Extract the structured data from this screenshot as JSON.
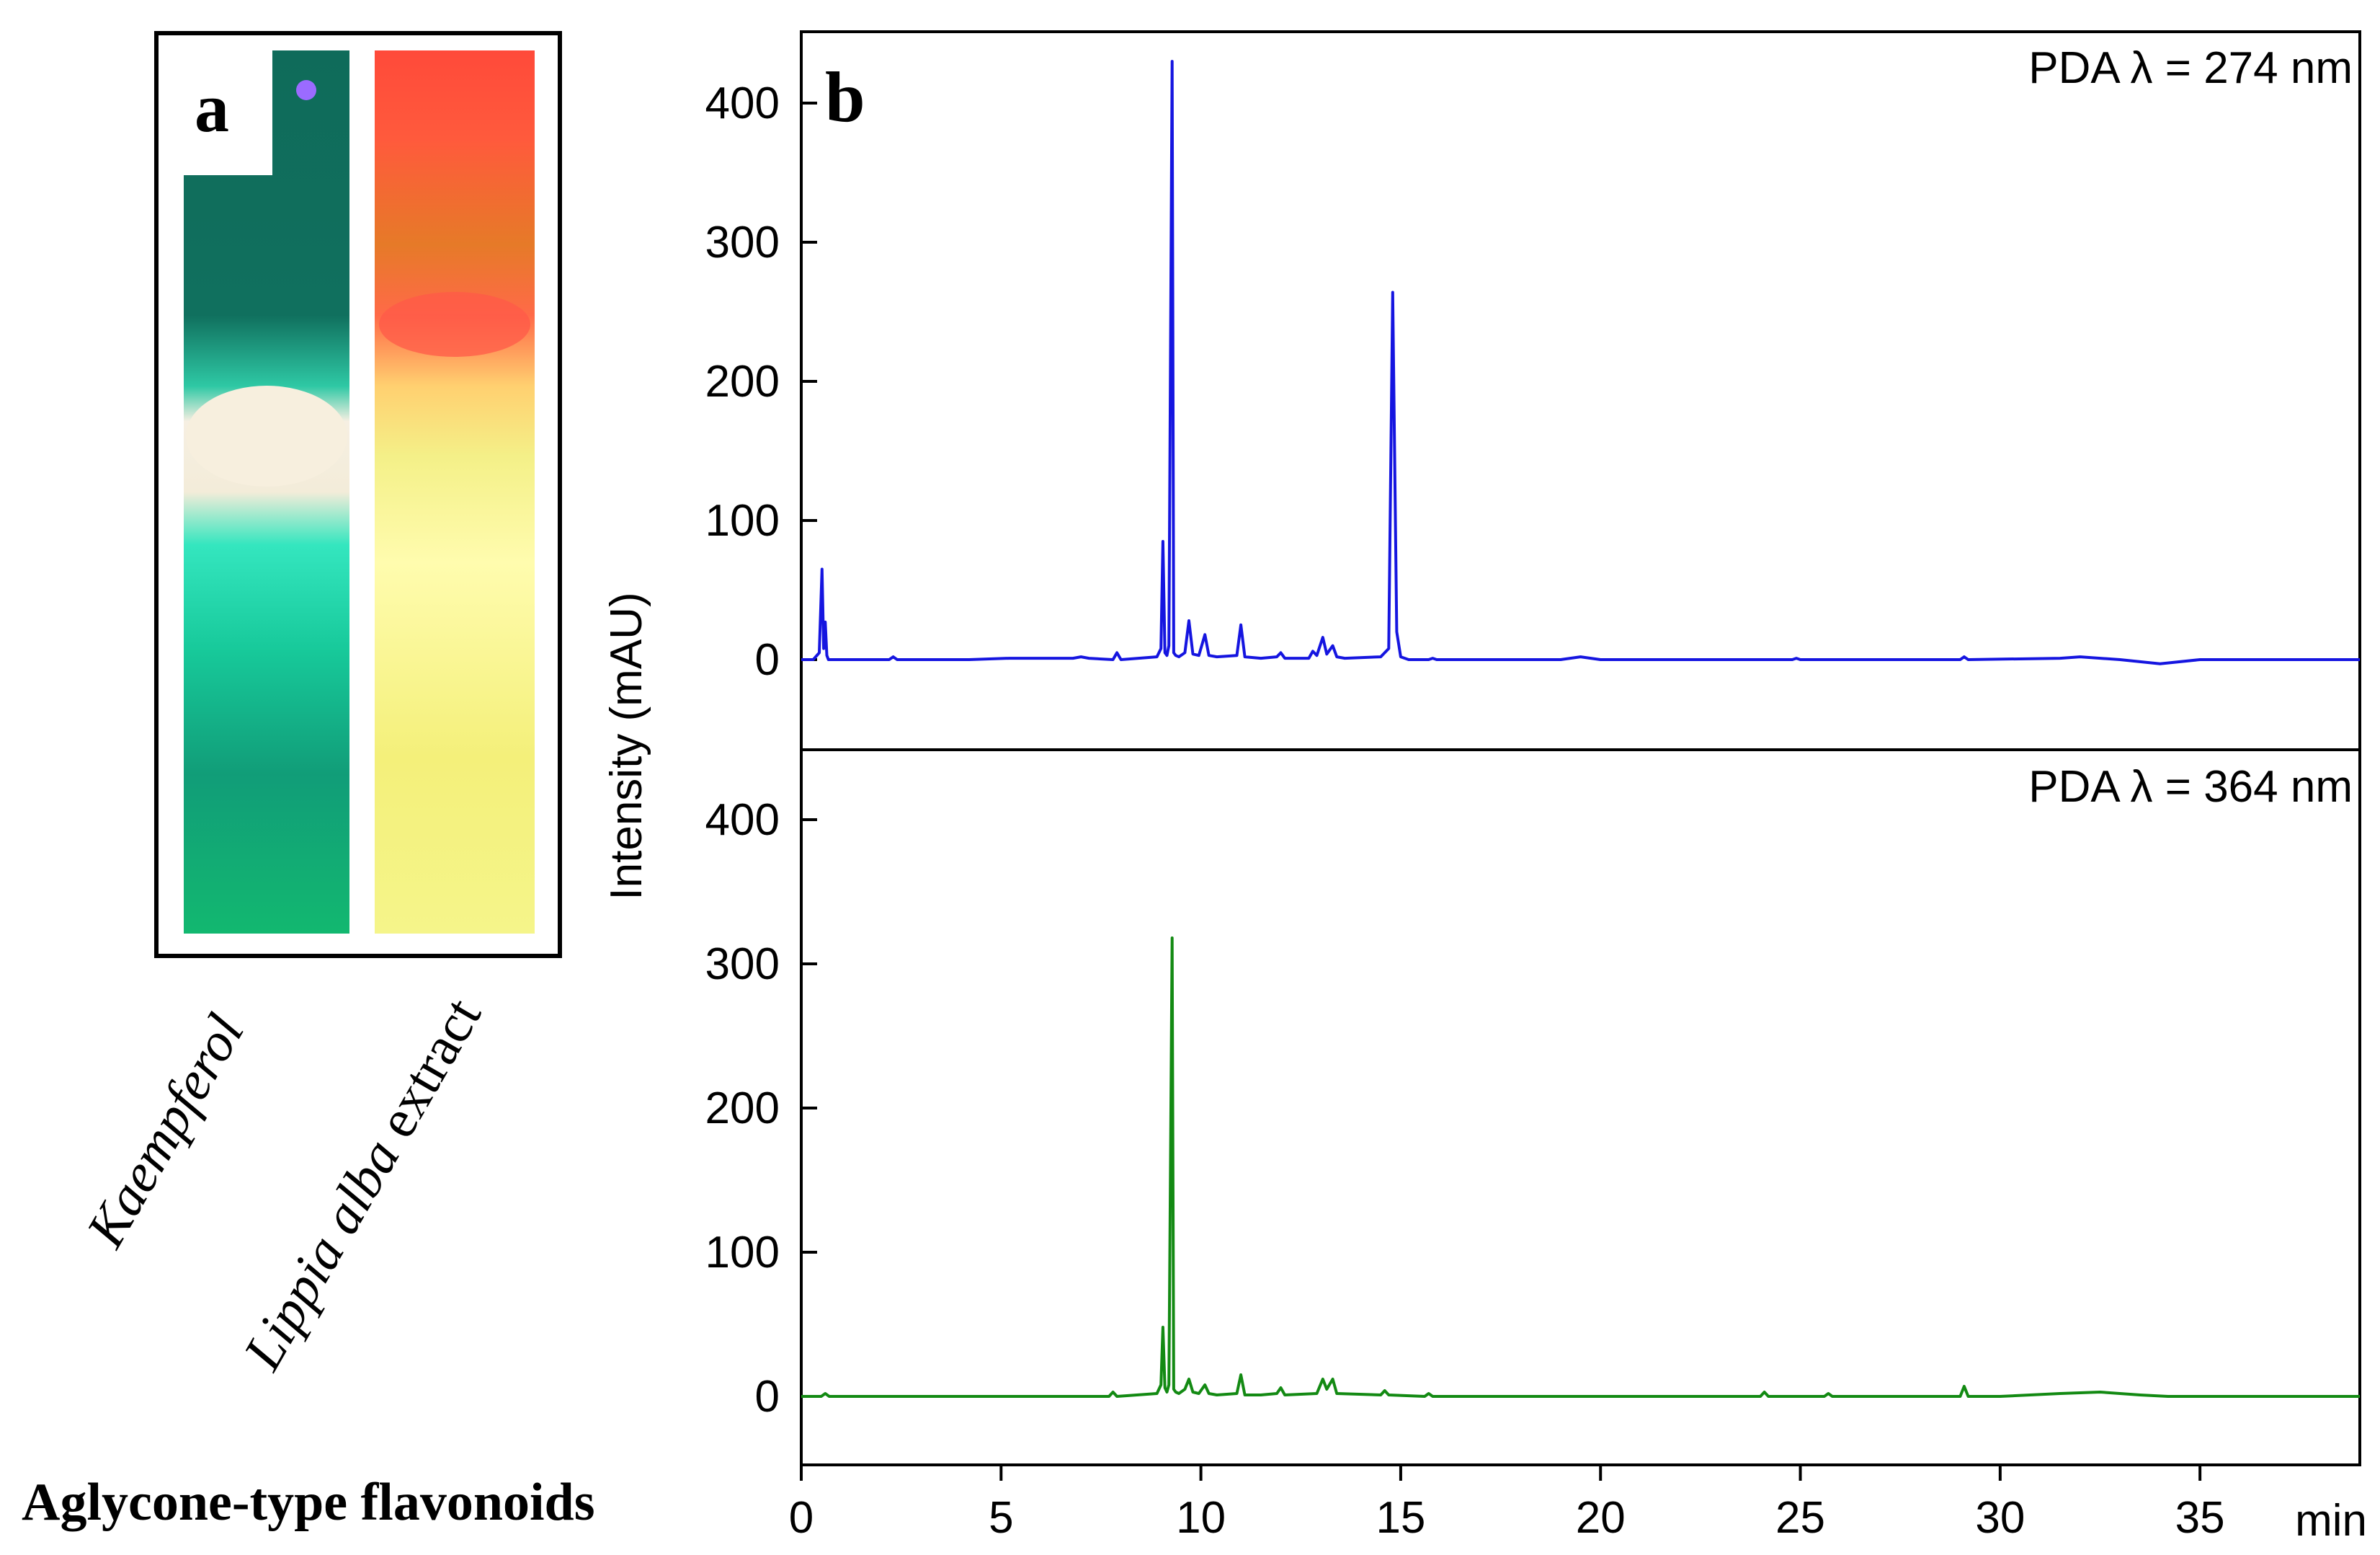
{
  "panel_a": {
    "label": "a",
    "lanes": [
      {
        "name": "Kaempferol",
        "italic": true
      },
      {
        "name_italic": "Lippia alba",
        "name_rest": " extract"
      }
    ],
    "caption": "Aglycone-type flavonoids"
  },
  "chart_data": {
    "type": "line",
    "panel_label": "b",
    "ylabel": "Intensity (mAU)",
    "xlabel": "min",
    "xlim": [
      0,
      39
    ],
    "x_ticks": [
      0,
      5,
      10,
      15,
      20,
      25,
      30,
      35
    ],
    "panels": [
      {
        "annotation": "PDA λ = 274 nm",
        "ylim": [
          -50,
          450
        ],
        "y_ticks": [
          0,
          100,
          200,
          300,
          400
        ],
        "series": [
          {
            "name": "274 nm",
            "color": "#1515e0",
            "x": [
              0,
              0.3,
              0.45,
              0.52,
              0.56,
              0.6,
              0.64,
              0.68,
              0.75,
              1.5,
              2.2,
              2.3,
              2.4,
              4.2,
              5.2,
              6.8,
              7.0,
              7.2,
              7.8,
              7.9,
              8.0,
              8.9,
              9.0,
              9.05,
              9.1,
              9.15,
              9.2,
              9.28,
              9.32,
              9.37,
              9.45,
              9.6,
              9.7,
              9.8,
              9.95,
              10.1,
              10.2,
              10.4,
              10.9,
              11.0,
              11.1,
              11.5,
              11.9,
              12.0,
              12.1,
              12.7,
              12.8,
              12.9,
              13.05,
              13.15,
              13.3,
              13.4,
              13.6,
              14.5,
              14.7,
              14.8,
              14.9,
              15.0,
              15.2,
              15.7,
              15.8,
              15.9,
              19.0,
              19.5,
              20.0,
              24.8,
              24.9,
              25.0,
              29.0,
              29.1,
              29.2,
              31.5,
              32.0,
              33.0,
              34.0,
              35.0,
              39.0
            ],
            "y": [
              0,
              0,
              5,
              65,
              8,
              27,
              3,
              0,
              0,
              0,
              0,
              2,
              0,
              0,
              1,
              1,
              2,
              1,
              0,
              5,
              0,
              2,
              8,
              85,
              5,
              3,
              10,
              430,
              5,
              3,
              2,
              5,
              28,
              4,
              3,
              18,
              3,
              2,
              3,
              25,
              2,
              1,
              2,
              5,
              1,
              1,
              6,
              3,
              16,
              4,
              10,
              2,
              1,
              2,
              8,
              264,
              20,
              2,
              0,
              0,
              1,
              0,
              0,
              2,
              0,
              0,
              1,
              0,
              0,
              2,
              0,
              1,
              2,
              0,
              -3,
              0,
              0
            ]
          }
        ]
      },
      {
        "annotation": "PDA λ = 364 nm",
        "ylim": [
          -50,
          450
        ],
        "y_ticks": [
          0,
          100,
          200,
          300,
          400
        ],
        "series": [
          {
            "name": "364 nm",
            "color": "#138a13",
            "x": [
              0,
              0.5,
              0.6,
              0.7,
              7.7,
              7.8,
              7.9,
              8.9,
              9.0,
              9.05,
              9.1,
              9.15,
              9.2,
              9.28,
              9.32,
              9.37,
              9.45,
              9.6,
              9.7,
              9.8,
              9.95,
              10.1,
              10.2,
              10.4,
              10.9,
              11.0,
              11.1,
              11.5,
              11.9,
              12.0,
              12.1,
              12.9,
              13.05,
              13.15,
              13.3,
              13.4,
              14.5,
              14.6,
              14.7,
              15.6,
              15.7,
              15.8,
              20.0,
              24.0,
              24.1,
              24.2,
              25.6,
              25.7,
              25.8,
              29.0,
              29.1,
              29.2,
              30.0,
              31.5,
              32.5,
              33.5,
              34.2,
              35.0,
              39.0
            ],
            "y": [
              0,
              0,
              2,
              0,
              0,
              3,
              0,
              2,
              8,
              48,
              6,
              3,
              8,
              318,
              5,
              3,
              2,
              5,
              12,
              3,
              2,
              8,
              2,
              1,
              2,
              15,
              1,
              1,
              2,
              6,
              1,
              2,
              12,
              5,
              12,
              2,
              1,
              4,
              1,
              0,
              2,
              0,
              0,
              0,
              3,
              0,
              0,
              2,
              0,
              0,
              7,
              0,
              0,
              2,
              3,
              1,
              0,
              0,
              0
            ]
          }
        ]
      }
    ]
  }
}
